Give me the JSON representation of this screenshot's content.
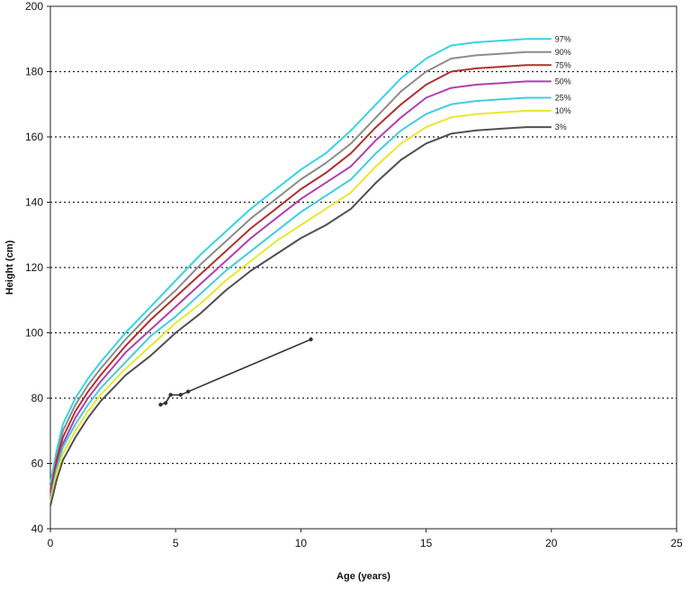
{
  "chart_data": {
    "type": "line",
    "title": "",
    "xlabel": "Age (years)",
    "ylabel": "Height (cm)",
    "xlim": [
      0,
      25
    ],
    "ylim": [
      40,
      200
    ],
    "x_ticks": [
      0,
      5,
      10,
      15,
      20,
      25
    ],
    "y_ticks": [
      40,
      60,
      80,
      100,
      120,
      140,
      160,
      180,
      200
    ],
    "grid": {
      "horizontal": "dotted",
      "vertical": false
    },
    "legend": "percentile labels at right end of curves",
    "series": [
      {
        "name": "97%",
        "color": "#33d6e6",
        "points": [
          [
            0,
            54
          ],
          [
            0.25,
            64
          ],
          [
            0.5,
            72
          ],
          [
            1,
            80
          ],
          [
            1.5,
            86
          ],
          [
            2,
            91
          ],
          [
            3,
            100
          ],
          [
            4,
            108
          ],
          [
            5,
            116
          ],
          [
            6,
            124
          ],
          [
            7,
            131
          ],
          [
            8,
            138
          ],
          [
            9,
            144
          ],
          [
            10,
            150
          ],
          [
            11,
            155
          ],
          [
            12,
            162
          ],
          [
            13,
            170
          ],
          [
            14,
            178
          ],
          [
            15,
            184
          ],
          [
            16,
            188
          ],
          [
            17,
            189
          ],
          [
            18,
            189.5
          ],
          [
            19,
            190
          ],
          [
            20,
            190
          ]
        ]
      },
      {
        "name": "90%",
        "color": "#8c8c8c",
        "points": [
          [
            0,
            52
          ],
          [
            0.25,
            62
          ],
          [
            0.5,
            70
          ],
          [
            1,
            78
          ],
          [
            1.5,
            84
          ],
          [
            2,
            89
          ],
          [
            3,
            98
          ],
          [
            4,
            106
          ],
          [
            5,
            113
          ],
          [
            6,
            121
          ],
          [
            7,
            128
          ],
          [
            8,
            135
          ],
          [
            9,
            141
          ],
          [
            10,
            147
          ],
          [
            11,
            152
          ],
          [
            12,
            158
          ],
          [
            13,
            166
          ],
          [
            14,
            174
          ],
          [
            15,
            180
          ],
          [
            16,
            184
          ],
          [
            17,
            185
          ],
          [
            18,
            185.5
          ],
          [
            19,
            186
          ],
          [
            20,
            186
          ]
        ]
      },
      {
        "name": "75%",
        "color": "#b03030",
        "points": [
          [
            0,
            51
          ],
          [
            0.25,
            61
          ],
          [
            0.5,
            68
          ],
          [
            1,
            76
          ],
          [
            1.5,
            82
          ],
          [
            2,
            87
          ],
          [
            3,
            96
          ],
          [
            4,
            104
          ],
          [
            5,
            111
          ],
          [
            6,
            118
          ],
          [
            7,
            125
          ],
          [
            8,
            132
          ],
          [
            9,
            138
          ],
          [
            10,
            144
          ],
          [
            11,
            149
          ],
          [
            12,
            155
          ],
          [
            13,
            163
          ],
          [
            14,
            170
          ],
          [
            15,
            176
          ],
          [
            16,
            180
          ],
          [
            17,
            181
          ],
          [
            18,
            181.5
          ],
          [
            19,
            182
          ],
          [
            20,
            182
          ]
        ]
      },
      {
        "name": "50%",
        "color": "#b040b0",
        "points": [
          [
            0,
            50
          ],
          [
            0.25,
            59
          ],
          [
            0.5,
            66
          ],
          [
            1,
            74
          ],
          [
            1.5,
            80
          ],
          [
            2,
            85
          ],
          [
            3,
            94
          ],
          [
            4,
            101
          ],
          [
            5,
            108
          ],
          [
            6,
            115
          ],
          [
            7,
            122
          ],
          [
            8,
            129
          ],
          [
            9,
            135
          ],
          [
            10,
            141
          ],
          [
            11,
            146
          ],
          [
            12,
            151
          ],
          [
            13,
            159
          ],
          [
            14,
            166
          ],
          [
            15,
            172
          ],
          [
            16,
            175
          ],
          [
            17,
            176
          ],
          [
            18,
            176.5
          ],
          [
            19,
            177
          ],
          [
            20,
            177
          ]
        ]
      },
      {
        "name": "25%",
        "color": "#44cce0",
        "points": [
          [
            0,
            49
          ],
          [
            0.25,
            58
          ],
          [
            0.5,
            65
          ],
          [
            1,
            72
          ],
          [
            1.5,
            78
          ],
          [
            2,
            83
          ],
          [
            3,
            91
          ],
          [
            4,
            99
          ],
          [
            5,
            105
          ],
          [
            6,
            112
          ],
          [
            7,
            119
          ],
          [
            8,
            125
          ],
          [
            9,
            131
          ],
          [
            10,
            137
          ],
          [
            11,
            142
          ],
          [
            12,
            147
          ],
          [
            13,
            155
          ],
          [
            14,
            162
          ],
          [
            15,
            167
          ],
          [
            16,
            170
          ],
          [
            17,
            171
          ],
          [
            18,
            171.5
          ],
          [
            19,
            172
          ],
          [
            20,
            172
          ]
        ]
      },
      {
        "name": "10%",
        "color": "#e8e830",
        "points": [
          [
            0,
            48
          ],
          [
            0.25,
            57
          ],
          [
            0.5,
            63
          ],
          [
            1,
            70
          ],
          [
            1.5,
            76
          ],
          [
            2,
            81
          ],
          [
            3,
            89
          ],
          [
            4,
            96
          ],
          [
            5,
            103
          ],
          [
            6,
            109
          ],
          [
            7,
            116
          ],
          [
            8,
            122
          ],
          [
            9,
            128
          ],
          [
            10,
            133
          ],
          [
            11,
            138
          ],
          [
            12,
            143
          ],
          [
            13,
            151
          ],
          [
            14,
            158
          ],
          [
            15,
            163
          ],
          [
            16,
            166
          ],
          [
            17,
            167
          ],
          [
            18,
            167.5
          ],
          [
            19,
            168
          ],
          [
            20,
            168
          ]
        ]
      },
      {
        "name": "3%",
        "color": "#505050",
        "points": [
          [
            0,
            47
          ],
          [
            0.25,
            55
          ],
          [
            0.5,
            61
          ],
          [
            1,
            68
          ],
          [
            1.5,
            74
          ],
          [
            2,
            79
          ],
          [
            3,
            87
          ],
          [
            4,
            93
          ],
          [
            5,
            100
          ],
          [
            6,
            106
          ],
          [
            7,
            113
          ],
          [
            8,
            119
          ],
          [
            9,
            124
          ],
          [
            10,
            129
          ],
          [
            11,
            133
          ],
          [
            12,
            138
          ],
          [
            13,
            146
          ],
          [
            14,
            153
          ],
          [
            15,
            158
          ],
          [
            16,
            161
          ],
          [
            17,
            162
          ],
          [
            18,
            162.5
          ],
          [
            19,
            163
          ],
          [
            20,
            163
          ]
        ]
      },
      {
        "name": "",
        "color": "#333333",
        "markers": true,
        "points": [
          [
            4.4,
            78
          ],
          [
            4.6,
            78.5
          ],
          [
            4.8,
            81
          ],
          [
            5.2,
            81
          ],
          [
            5.5,
            82
          ],
          [
            10.4,
            98
          ]
        ]
      }
    ]
  }
}
